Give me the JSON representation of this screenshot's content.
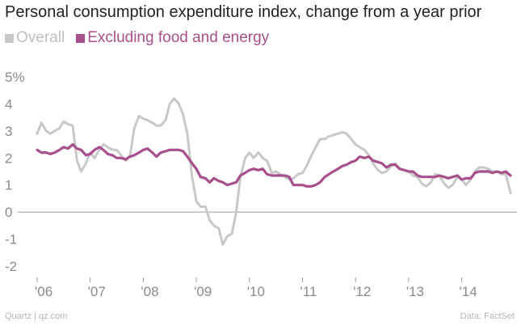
{
  "chart_data": {
    "type": "line",
    "title": "Personal consumption expenditure index, change from a year prior",
    "xlabel": "",
    "ylabel": "",
    "ylim": [
      -2.5,
      5.5
    ],
    "y_ticks": [
      {
        "value": 5,
        "label": "5%"
      },
      {
        "value": 4,
        "label": "4"
      },
      {
        "value": 3,
        "label": "3"
      },
      {
        "value": 2,
        "label": "2"
      },
      {
        "value": 1,
        "label": "1"
      },
      {
        "value": 0,
        "label": "0"
      },
      {
        "value": -1,
        "label": "-1"
      },
      {
        "value": -2,
        "label": "-2"
      }
    ],
    "x_ticks": [
      {
        "value": 2006,
        "label": "'06"
      },
      {
        "value": 2007,
        "label": "'07"
      },
      {
        "value": 2008,
        "label": "'08"
      },
      {
        "value": 2009,
        "label": "'09"
      },
      {
        "value": 2010,
        "label": "'10"
      },
      {
        "value": 2011,
        "label": "'11"
      },
      {
        "value": 2012,
        "label": "'12"
      },
      {
        "value": 2013,
        "label": "'13"
      },
      {
        "value": 2014,
        "label": "'14"
      }
    ],
    "series": [
      {
        "name": "Overall",
        "color": "#c8c8c8",
        "points": [
          [
            2006.0,
            2.9
          ],
          [
            2006.08,
            3.3
          ],
          [
            2006.17,
            3.0
          ],
          [
            2006.25,
            2.9
          ],
          [
            2006.33,
            3.0
          ],
          [
            2006.42,
            3.1
          ],
          [
            2006.5,
            3.35
          ],
          [
            2006.58,
            3.25
          ],
          [
            2006.67,
            3.2
          ],
          [
            2006.75,
            1.9
          ],
          [
            2006.83,
            1.5
          ],
          [
            2006.92,
            1.8
          ],
          [
            2007.0,
            2.2
          ],
          [
            2007.08,
            2.0
          ],
          [
            2007.17,
            2.3
          ],
          [
            2007.25,
            2.5
          ],
          [
            2007.33,
            2.4
          ],
          [
            2007.42,
            2.3
          ],
          [
            2007.5,
            2.3
          ],
          [
            2007.58,
            2.1
          ],
          [
            2007.67,
            1.9
          ],
          [
            2007.75,
            2.1
          ],
          [
            2007.83,
            3.1
          ],
          [
            2007.92,
            3.55
          ],
          [
            2008.0,
            3.45
          ],
          [
            2008.08,
            3.4
          ],
          [
            2008.17,
            3.3
          ],
          [
            2008.25,
            3.2
          ],
          [
            2008.33,
            3.2
          ],
          [
            2008.42,
            3.4
          ],
          [
            2008.5,
            4.0
          ],
          [
            2008.58,
            4.2
          ],
          [
            2008.67,
            4.0
          ],
          [
            2008.75,
            3.6
          ],
          [
            2008.83,
            2.9
          ],
          [
            2008.92,
            1.3
          ],
          [
            2009.0,
            0.4
          ],
          [
            2009.08,
            0.2
          ],
          [
            2009.17,
            0.2
          ],
          [
            2009.25,
            -0.3
          ],
          [
            2009.33,
            -0.5
          ],
          [
            2009.42,
            -0.6
          ],
          [
            2009.5,
            -1.2
          ],
          [
            2009.58,
            -0.9
          ],
          [
            2009.67,
            -0.8
          ],
          [
            2009.75,
            0.0
          ],
          [
            2009.83,
            1.3
          ],
          [
            2009.92,
            2.0
          ],
          [
            2010.0,
            2.2
          ],
          [
            2010.08,
            2.0
          ],
          [
            2010.17,
            2.2
          ],
          [
            2010.25,
            2.0
          ],
          [
            2010.33,
            1.9
          ],
          [
            2010.42,
            1.45
          ],
          [
            2010.5,
            1.5
          ],
          [
            2010.58,
            1.4
          ],
          [
            2010.67,
            1.3
          ],
          [
            2010.75,
            1.2
          ],
          [
            2010.83,
            1.25
          ],
          [
            2010.92,
            1.4
          ],
          [
            2011.0,
            1.45
          ],
          [
            2011.08,
            1.7
          ],
          [
            2011.17,
            2.1
          ],
          [
            2011.25,
            2.4
          ],
          [
            2011.33,
            2.7
          ],
          [
            2011.42,
            2.7
          ],
          [
            2011.5,
            2.8
          ],
          [
            2011.58,
            2.85
          ],
          [
            2011.67,
            2.9
          ],
          [
            2011.75,
            2.95
          ],
          [
            2011.83,
            2.9
          ],
          [
            2011.92,
            2.7
          ],
          [
            2012.0,
            2.5
          ],
          [
            2012.08,
            2.4
          ],
          [
            2012.17,
            2.3
          ],
          [
            2012.25,
            2.1
          ],
          [
            2012.33,
            1.8
          ],
          [
            2012.42,
            1.55
          ],
          [
            2012.5,
            1.45
          ],
          [
            2012.58,
            1.5
          ],
          [
            2012.67,
            1.7
          ],
          [
            2012.75,
            1.8
          ],
          [
            2012.83,
            1.6
          ],
          [
            2012.92,
            1.55
          ],
          [
            2013.0,
            1.5
          ],
          [
            2013.08,
            1.35
          ],
          [
            2013.17,
            1.3
          ],
          [
            2013.25,
            1.05
          ],
          [
            2013.33,
            0.95
          ],
          [
            2013.42,
            1.1
          ],
          [
            2013.5,
            1.4
          ],
          [
            2013.58,
            1.35
          ],
          [
            2013.67,
            1.05
          ],
          [
            2013.75,
            0.9
          ],
          [
            2013.83,
            1.0
          ],
          [
            2013.92,
            1.3
          ],
          [
            2014.0,
            1.2
          ],
          [
            2014.08,
            1.0
          ],
          [
            2014.17,
            1.2
          ],
          [
            2014.25,
            1.5
          ],
          [
            2014.33,
            1.65
          ],
          [
            2014.42,
            1.65
          ],
          [
            2014.5,
            1.6
          ],
          [
            2014.58,
            1.5
          ],
          [
            2014.67,
            1.5
          ],
          [
            2014.75,
            1.4
          ],
          [
            2014.83,
            1.4
          ],
          [
            2014.92,
            0.7
          ]
        ]
      },
      {
        "name": "Excluding food and energy",
        "color": "#a8508c",
        "points": [
          [
            2006.0,
            2.3
          ],
          [
            2006.08,
            2.2
          ],
          [
            2006.17,
            2.2
          ],
          [
            2006.25,
            2.15
          ],
          [
            2006.33,
            2.2
          ],
          [
            2006.42,
            2.3
          ],
          [
            2006.5,
            2.4
          ],
          [
            2006.58,
            2.35
          ],
          [
            2006.67,
            2.5
          ],
          [
            2006.75,
            2.35
          ],
          [
            2006.83,
            2.3
          ],
          [
            2006.92,
            2.1
          ],
          [
            2007.0,
            2.15
          ],
          [
            2007.08,
            2.3
          ],
          [
            2007.17,
            2.4
          ],
          [
            2007.25,
            2.3
          ],
          [
            2007.33,
            2.15
          ],
          [
            2007.42,
            2.1
          ],
          [
            2007.5,
            2.0
          ],
          [
            2007.58,
            2.0
          ],
          [
            2007.67,
            1.95
          ],
          [
            2007.75,
            2.05
          ],
          [
            2007.83,
            2.1
          ],
          [
            2007.92,
            2.2
          ],
          [
            2008.0,
            2.3
          ],
          [
            2008.08,
            2.35
          ],
          [
            2008.17,
            2.2
          ],
          [
            2008.25,
            2.05
          ],
          [
            2008.33,
            2.2
          ],
          [
            2008.42,
            2.25
          ],
          [
            2008.5,
            2.3
          ],
          [
            2008.58,
            2.3
          ],
          [
            2008.67,
            2.3
          ],
          [
            2008.75,
            2.25
          ],
          [
            2008.83,
            2.05
          ],
          [
            2008.92,
            1.8
          ],
          [
            2009.0,
            1.6
          ],
          [
            2009.08,
            1.3
          ],
          [
            2009.17,
            1.25
          ],
          [
            2009.25,
            1.1
          ],
          [
            2009.33,
            1.25
          ],
          [
            2009.42,
            1.15
          ],
          [
            2009.5,
            1.1
          ],
          [
            2009.58,
            1.0
          ],
          [
            2009.67,
            1.05
          ],
          [
            2009.75,
            1.1
          ],
          [
            2009.83,
            1.35
          ],
          [
            2009.92,
            1.45
          ],
          [
            2010.0,
            1.55
          ],
          [
            2010.08,
            1.6
          ],
          [
            2010.17,
            1.55
          ],
          [
            2010.25,
            1.6
          ],
          [
            2010.33,
            1.4
          ],
          [
            2010.42,
            1.35
          ],
          [
            2010.5,
            1.35
          ],
          [
            2010.58,
            1.35
          ],
          [
            2010.67,
            1.35
          ],
          [
            2010.75,
            1.3
          ],
          [
            2010.83,
            1.0
          ],
          [
            2010.92,
            1.0
          ],
          [
            2011.0,
            1.0
          ],
          [
            2011.08,
            0.95
          ],
          [
            2011.17,
            0.95
          ],
          [
            2011.25,
            1.0
          ],
          [
            2011.33,
            1.1
          ],
          [
            2011.42,
            1.3
          ],
          [
            2011.5,
            1.4
          ],
          [
            2011.58,
            1.5
          ],
          [
            2011.67,
            1.6
          ],
          [
            2011.75,
            1.7
          ],
          [
            2011.83,
            1.75
          ],
          [
            2011.92,
            1.85
          ],
          [
            2012.0,
            1.9
          ],
          [
            2012.08,
            2.05
          ],
          [
            2012.17,
            2.0
          ],
          [
            2012.25,
            2.05
          ],
          [
            2012.33,
            1.9
          ],
          [
            2012.42,
            1.85
          ],
          [
            2012.5,
            1.8
          ],
          [
            2012.58,
            1.65
          ],
          [
            2012.67,
            1.75
          ],
          [
            2012.75,
            1.75
          ],
          [
            2012.83,
            1.6
          ],
          [
            2012.92,
            1.55
          ],
          [
            2013.0,
            1.5
          ],
          [
            2013.08,
            1.5
          ],
          [
            2013.17,
            1.35
          ],
          [
            2013.25,
            1.3
          ],
          [
            2013.33,
            1.3
          ],
          [
            2013.42,
            1.3
          ],
          [
            2013.5,
            1.3
          ],
          [
            2013.58,
            1.35
          ],
          [
            2013.67,
            1.3
          ],
          [
            2013.75,
            1.25
          ],
          [
            2013.83,
            1.3
          ],
          [
            2013.92,
            1.35
          ],
          [
            2014.0,
            1.2
          ],
          [
            2014.08,
            1.25
          ],
          [
            2014.17,
            1.25
          ],
          [
            2014.25,
            1.45
          ],
          [
            2014.33,
            1.5
          ],
          [
            2014.42,
            1.5
          ],
          [
            2014.5,
            1.5
          ],
          [
            2014.58,
            1.45
          ],
          [
            2014.67,
            1.5
          ],
          [
            2014.75,
            1.45
          ],
          [
            2014.83,
            1.5
          ],
          [
            2014.92,
            1.35
          ]
        ]
      }
    ],
    "zero_line": true,
    "legend_position": "top-left"
  },
  "footer": {
    "source_left": "Quartz | qz.com",
    "source_right": "Data: FactSet"
  }
}
